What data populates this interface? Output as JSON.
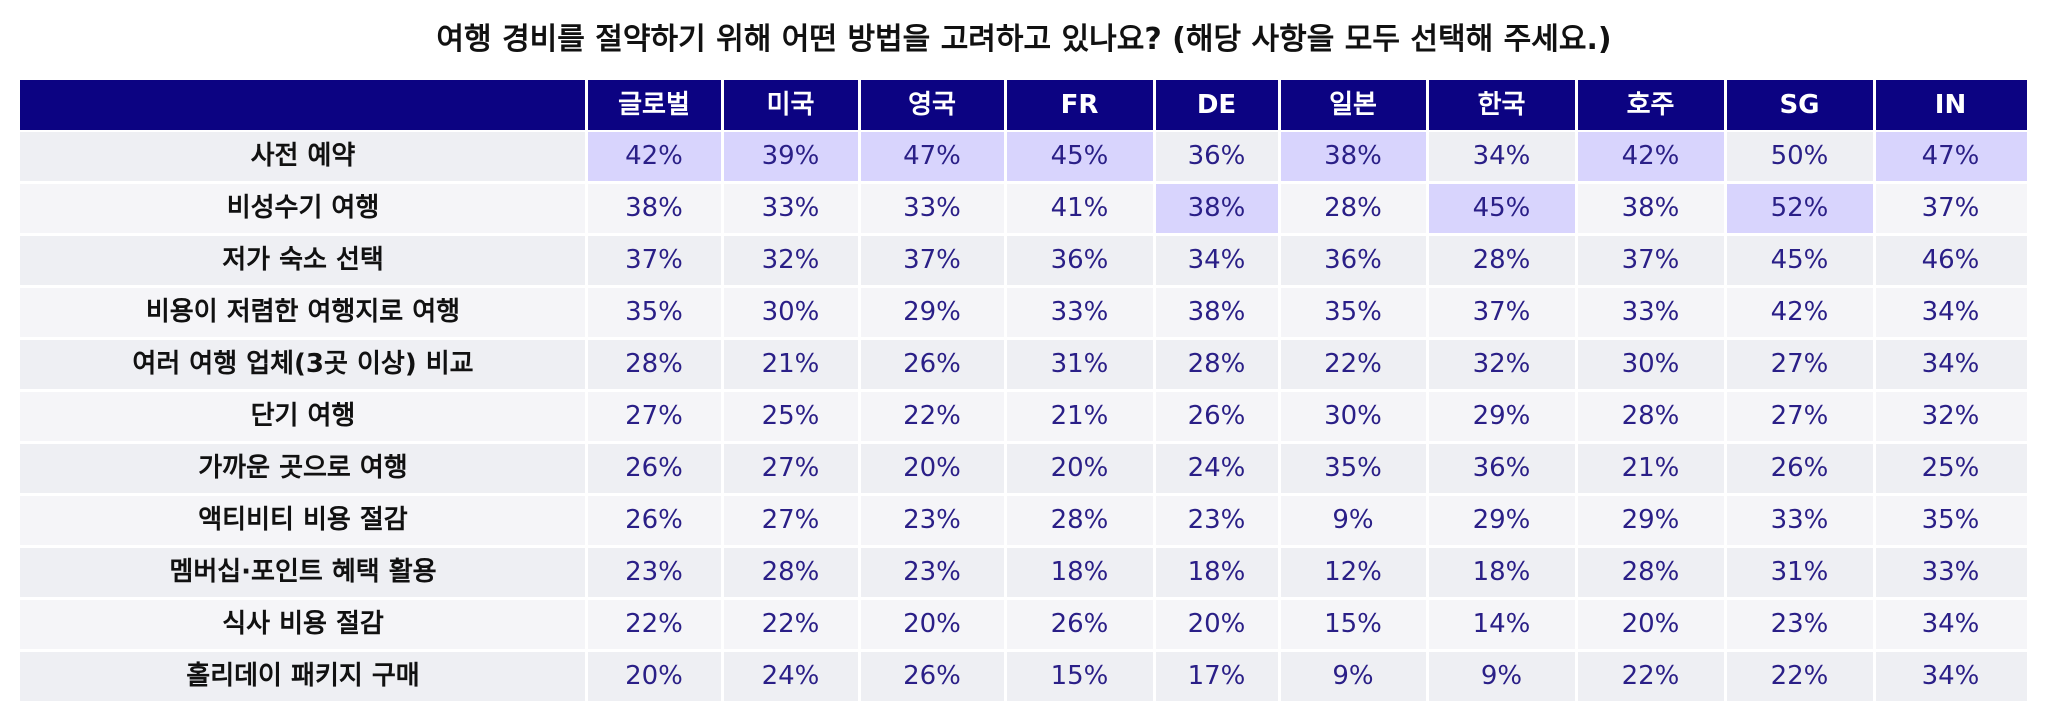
{
  "title": "여행 경비를 절약하기 위해 어떤 방법을 고려하고 있나요? (해당 사항을 모두 선택해 주세요.)",
  "colors": {
    "header_bg": "#0c0382",
    "highlight": "#d8d4fd",
    "value_text": "#2a1f87"
  },
  "chart_data": {
    "type": "table",
    "title": "여행 경비를 절약하기 위해 어떤 방법을 고려하고 있나요? (해당 사항을 모두 선택해 주세요.)",
    "columns": [
      "글로벌",
      "미국",
      "영국",
      "FR",
      "DE",
      "일본",
      "한국",
      "호주",
      "SG",
      "IN"
    ],
    "rows": [
      {
        "label": "사전 예약",
        "values": [
          "42%",
          "39%",
          "47%",
          "45%",
          "36%",
          "38%",
          "34%",
          "42%",
          "50%",
          "47%"
        ],
        "highlight": [
          true,
          true,
          true,
          true,
          false,
          true,
          false,
          true,
          false,
          true
        ]
      },
      {
        "label": "비성수기 여행",
        "values": [
          "38%",
          "33%",
          "33%",
          "41%",
          "38%",
          "28%",
          "45%",
          "38%",
          "52%",
          "37%"
        ],
        "highlight": [
          false,
          false,
          false,
          false,
          true,
          false,
          true,
          false,
          true,
          false
        ]
      },
      {
        "label": "저가 숙소 선택",
        "values": [
          "37%",
          "32%",
          "37%",
          "36%",
          "34%",
          "36%",
          "28%",
          "37%",
          "45%",
          "46%"
        ],
        "highlight": [
          false,
          false,
          false,
          false,
          false,
          false,
          false,
          false,
          false,
          false
        ]
      },
      {
        "label": "비용이 저렴한 여행지로 여행",
        "values": [
          "35%",
          "30%",
          "29%",
          "33%",
          "38%",
          "35%",
          "37%",
          "33%",
          "42%",
          "34%"
        ],
        "highlight": [
          false,
          false,
          false,
          false,
          false,
          false,
          false,
          false,
          false,
          false
        ]
      },
      {
        "label": "여러 여행 업체(3곳 이상) 비교",
        "values": [
          "28%",
          "21%",
          "26%",
          "31%",
          "28%",
          "22%",
          "32%",
          "30%",
          "27%",
          "34%"
        ],
        "highlight": [
          false,
          false,
          false,
          false,
          false,
          false,
          false,
          false,
          false,
          false
        ]
      },
      {
        "label": "단기 여행",
        "values": [
          "27%",
          "25%",
          "22%",
          "21%",
          "26%",
          "30%",
          "29%",
          "28%",
          "27%",
          "32%"
        ],
        "highlight": [
          false,
          false,
          false,
          false,
          false,
          false,
          false,
          false,
          false,
          false
        ]
      },
      {
        "label": "가까운 곳으로 여행",
        "values": [
          "26%",
          "27%",
          "20%",
          "20%",
          "24%",
          "35%",
          "36%",
          "21%",
          "26%",
          "25%"
        ],
        "highlight": [
          false,
          false,
          false,
          false,
          false,
          false,
          false,
          false,
          false,
          false
        ]
      },
      {
        "label": "액티비티 비용 절감",
        "values": [
          "26%",
          "27%",
          "23%",
          "28%",
          "23%",
          "9%",
          "29%",
          "29%",
          "33%",
          "35%"
        ],
        "highlight": [
          false,
          false,
          false,
          false,
          false,
          false,
          false,
          false,
          false,
          false
        ]
      },
      {
        "label": "멤버십·포인트 혜택 활용",
        "values": [
          "23%",
          "28%",
          "23%",
          "18%",
          "18%",
          "12%",
          "18%",
          "28%",
          "31%",
          "33%"
        ],
        "highlight": [
          false,
          false,
          false,
          false,
          false,
          false,
          false,
          false,
          false,
          false
        ]
      },
      {
        "label": "식사 비용 절감",
        "values": [
          "22%",
          "22%",
          "20%",
          "26%",
          "20%",
          "15%",
          "14%",
          "20%",
          "23%",
          "34%"
        ],
        "highlight": [
          false,
          false,
          false,
          false,
          false,
          false,
          false,
          false,
          false,
          false
        ]
      },
      {
        "label": "홀리데이 패키지 구매",
        "values": [
          "20%",
          "24%",
          "26%",
          "15%",
          "17%",
          "9%",
          "9%",
          "22%",
          "22%",
          "34%"
        ],
        "highlight": [
          false,
          false,
          false,
          false,
          false,
          false,
          false,
          false,
          false,
          false
        ]
      }
    ]
  }
}
